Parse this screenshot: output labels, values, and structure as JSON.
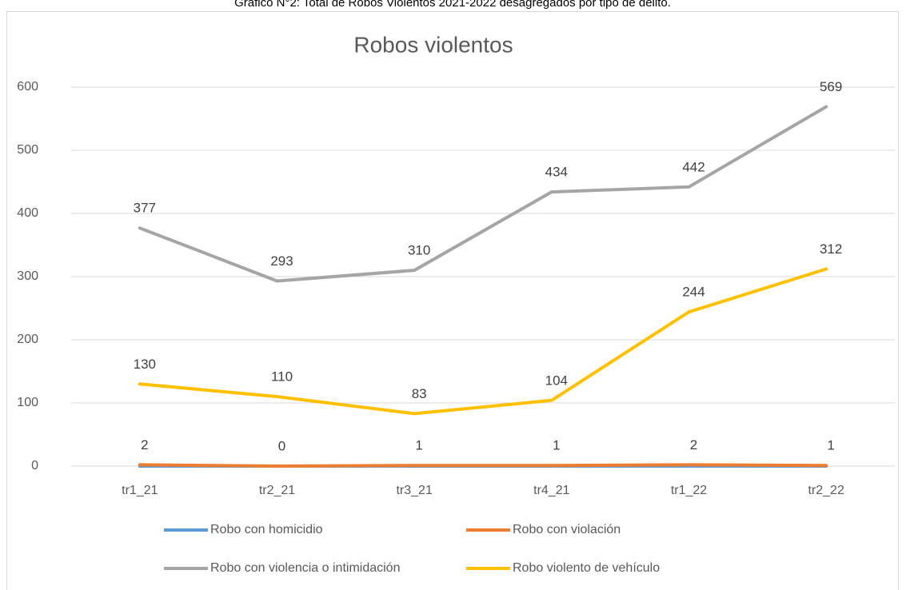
{
  "chart_data": {
    "type": "line",
    "caption": "Gráfico N°2: Total de Robos Violentos 2021-2022 desagregados por tipo de delito.",
    "title": "Robos violentos",
    "categories": [
      "tr1_21",
      "tr2_21",
      "tr3_21",
      "tr4_21",
      "tr1_22",
      "tr2_22"
    ],
    "series": [
      {
        "name": "Robo con homicidio",
        "color": "#5b9bd5",
        "values": [
          0,
          0,
          0,
          0,
          0,
          0
        ],
        "show_labels": false
      },
      {
        "name": "Robo con violación",
        "color": "#ed7d31",
        "values": [
          2,
          0,
          1,
          1,
          2,
          1
        ],
        "show_labels": true
      },
      {
        "name": "Robo con violencia o intimidación",
        "color": "#a5a5a5",
        "values": [
          377,
          293,
          310,
          434,
          442,
          569
        ],
        "show_labels": true
      },
      {
        "name": "Robo violento de vehículo",
        "color": "#ffc000",
        "values": [
          130,
          110,
          83,
          104,
          244,
          312
        ],
        "show_labels": true
      }
    ],
    "ylim": [
      0,
      600
    ],
    "yticks": [
      0,
      100,
      200,
      300,
      400,
      500,
      600
    ],
    "grid": true,
    "legend": "bottom"
  }
}
